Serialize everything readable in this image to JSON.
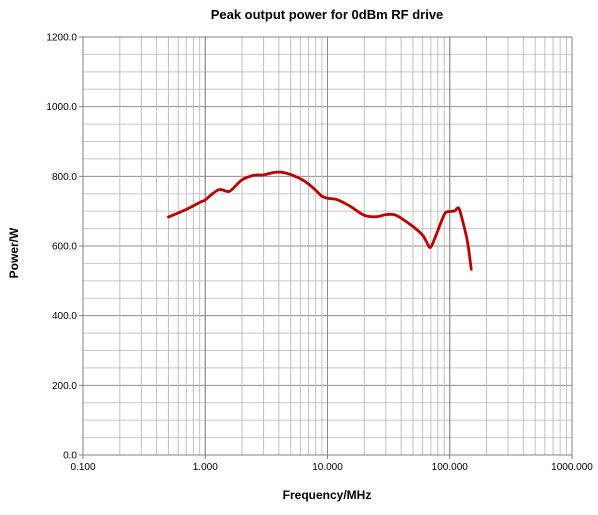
{
  "chart_data": {
    "type": "line",
    "title": "Peak output power for 0dBm RF drive",
    "xlabel": "Frequency/MHz",
    "ylabel": "Power/W",
    "xscale": "log",
    "xlim": [
      0.1,
      1000
    ],
    "ylim": [
      0,
      1200
    ],
    "x_ticks": [
      {
        "value": 0.1,
        "label": "0.100"
      },
      {
        "value": 1,
        "label": "1.000"
      },
      {
        "value": 10,
        "label": "10.000"
      },
      {
        "value": 100,
        "label": "100.000"
      },
      {
        "value": 1000,
        "label": "1000.000"
      }
    ],
    "y_ticks": [
      {
        "value": 0,
        "label": "0.0"
      },
      {
        "value": 200,
        "label": "200.0"
      },
      {
        "value": 400,
        "label": "400.0"
      },
      {
        "value": 600,
        "label": "600.0"
      },
      {
        "value": 800,
        "label": "800.0"
      },
      {
        "value": 1000,
        "label": "1000.0"
      },
      {
        "value": 1200,
        "label": "1200.0"
      }
    ],
    "y_minor_step": 50,
    "grid": true,
    "legend": "none",
    "series": [
      {
        "color": "#C00000",
        "x": [
          0.5,
          0.7,
          0.9,
          1.0,
          1.1,
          1.3,
          1.5,
          1.6,
          1.8,
          2.0,
          2.5,
          3.0,
          3.5,
          4.0,
          4.5,
          5.0,
          6.0,
          7.0,
          8.0,
          9.0,
          10.0,
          12.0,
          15.0,
          20.0,
          25.0,
          30.0,
          35.0,
          40.0,
          50.0,
          60.0,
          65.0,
          70.0,
          80.0,
          90.0,
          95.0,
          100.0,
          110.0,
          115.0,
          120.0,
          130.0,
          140.0,
          150.0
        ],
        "y": [
          683,
          705,
          725,
          732,
          745,
          762,
          757,
          758,
          775,
          790,
          803,
          804,
          810,
          812,
          810,
          805,
          793,
          778,
          760,
          743,
          737,
          733,
          716,
          688,
          684,
          690,
          690,
          680,
          656,
          631,
          610,
          597,
          645,
          690,
          698,
          699,
          701,
          708,
          705,
          660,
          610,
          533
        ]
      }
    ]
  }
}
